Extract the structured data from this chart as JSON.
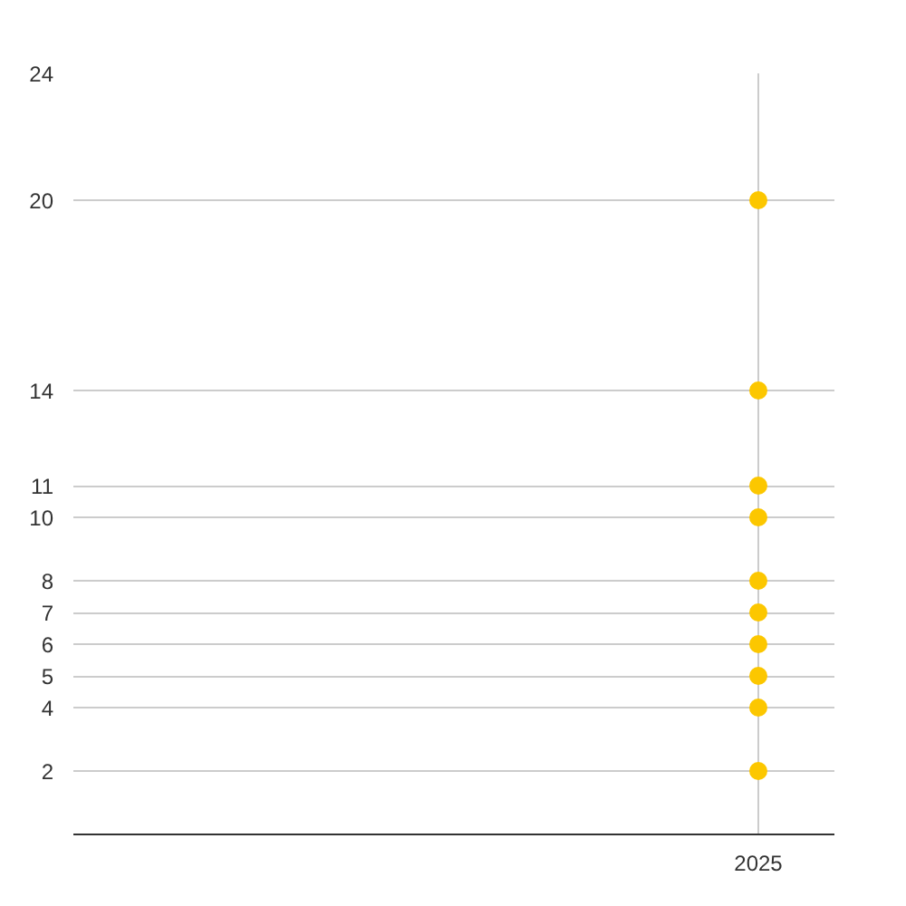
{
  "chart_data": {
    "type": "scatter",
    "categories": [
      "2025"
    ],
    "series": [
      {
        "color": "#fcc700",
        "values": [
          2
        ]
      },
      {
        "color": "#fcc700",
        "values": [
          4
        ]
      },
      {
        "color": "#fcc700",
        "values": [
          5
        ]
      },
      {
        "color": "#fcc700",
        "values": [
          6
        ]
      },
      {
        "color": "#fcc700",
        "values": [
          7
        ]
      },
      {
        "color": "#fcc700",
        "values": [
          8
        ]
      },
      {
        "color": "#fcc700",
        "values": [
          10
        ]
      },
      {
        "color": "#fcc700",
        "values": [
          11
        ]
      },
      {
        "color": "#fcc700",
        "values": [
          14
        ]
      },
      {
        "color": "#fcc700",
        "values": [
          20
        ]
      }
    ],
    "ylim": [
      0,
      24
    ],
    "yticks": [
      2,
      4,
      5,
      6,
      7,
      8,
      10,
      11,
      14,
      20,
      24
    ],
    "grid": true,
    "marker": "circle"
  }
}
